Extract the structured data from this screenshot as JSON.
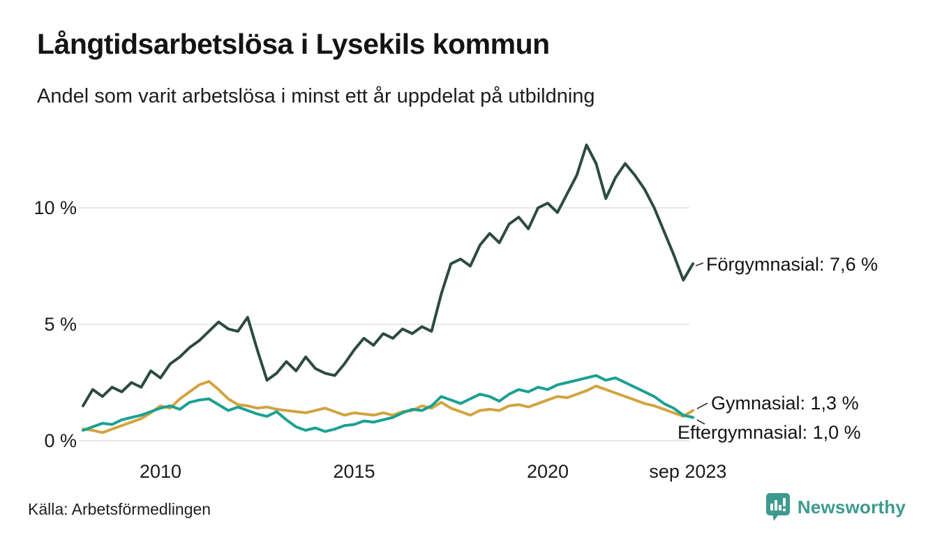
{
  "header": {
    "title": "Långtidsarbetslösa i Lysekils kommun",
    "subtitle": "Andel som varit arbetslösa i minst ett år uppdelat på utbildning"
  },
  "footer": {
    "source": "Källa: Arbetsförmedlingen",
    "brand_name": "Newsworthy",
    "brand_color": "#3d9a8e",
    "brand_icon": "bar-chart-speech-bubble-icon"
  },
  "chart_data": {
    "type": "line",
    "title": "Långtidsarbetslösa i Lysekils kommun",
    "subtitle": "Andel som varit arbetslösa i minst ett år uppdelat på utbildning",
    "unit": "%",
    "grid": true,
    "x_start": 2008,
    "x_step": 0.25,
    "x_axis": {
      "range": [
        2008,
        2023.75
      ],
      "ticks": [
        {
          "label": "2010",
          "x": 2010
        },
        {
          "label": "2015",
          "x": 2015
        },
        {
          "label": "2020",
          "x": 2020
        },
        {
          "label": "sep 2023",
          "x": 2023.62
        }
      ]
    },
    "y_axis": {
      "range": [
        0,
        13.5
      ],
      "ticks": [
        {
          "label": "0 %",
          "value": 0
        },
        {
          "label": "5 %",
          "value": 5
        },
        {
          "label": "10 %",
          "value": 10
        }
      ]
    },
    "series": [
      {
        "name": "Förgymnasial",
        "color": "#2d4a42",
        "end_value": 7.6,
        "end_label": "Förgymnasial: 7,6 %",
        "values": [
          1.5,
          2.2,
          1.9,
          2.3,
          2.1,
          2.5,
          2.3,
          3.0,
          2.7,
          3.3,
          3.6,
          4.0,
          4.3,
          4.7,
          5.1,
          4.8,
          4.7,
          5.3,
          3.9,
          2.6,
          2.9,
          3.4,
          3.0,
          3.6,
          3.1,
          2.9,
          2.8,
          3.3,
          3.9,
          4.4,
          4.1,
          4.6,
          4.4,
          4.8,
          4.6,
          4.9,
          4.7,
          6.3,
          7.6,
          7.8,
          7.5,
          8.4,
          8.9,
          8.5,
          9.3,
          9.6,
          9.1,
          10.0,
          10.2,
          9.8,
          10.6,
          11.4,
          12.7,
          11.9,
          10.4,
          11.3,
          11.9,
          11.4,
          10.8,
          10.0,
          9.0,
          8.0,
          6.9,
          7.6
        ]
      },
      {
        "name": "Gymnasial",
        "color": "#d1a440",
        "end_value": 1.3,
        "end_label": "Gymnasial: 1,3 %",
        "values": [
          0.5,
          0.45,
          0.35,
          0.5,
          0.65,
          0.8,
          0.95,
          1.2,
          1.5,
          1.4,
          1.8,
          2.1,
          2.4,
          2.55,
          2.2,
          1.8,
          1.55,
          1.5,
          1.4,
          1.45,
          1.35,
          1.3,
          1.25,
          1.2,
          1.3,
          1.4,
          1.25,
          1.1,
          1.2,
          1.15,
          1.1,
          1.2,
          1.1,
          1.25,
          1.3,
          1.5,
          1.4,
          1.65,
          1.4,
          1.25,
          1.1,
          1.3,
          1.35,
          1.3,
          1.5,
          1.55,
          1.45,
          1.6,
          1.75,
          1.9,
          1.85,
          2.0,
          2.15,
          2.35,
          2.2,
          2.05,
          1.9,
          1.75,
          1.6,
          1.5,
          1.35,
          1.2,
          1.05,
          1.3
        ]
      },
      {
        "name": "Eftergymnasial",
        "color": "#1aa092",
        "end_value": 1.0,
        "end_label": "Eftergymnasial: 1,0 %",
        "values": [
          0.45,
          0.6,
          0.75,
          0.7,
          0.9,
          1.0,
          1.1,
          1.25,
          1.4,
          1.5,
          1.35,
          1.65,
          1.75,
          1.8,
          1.55,
          1.3,
          1.45,
          1.3,
          1.15,
          1.05,
          1.25,
          0.9,
          0.6,
          0.45,
          0.55,
          0.4,
          0.5,
          0.65,
          0.7,
          0.85,
          0.8,
          0.9,
          1.0,
          1.2,
          1.35,
          1.3,
          1.5,
          1.9,
          1.75,
          1.6,
          1.8,
          2.0,
          1.9,
          1.7,
          2.0,
          2.2,
          2.1,
          2.3,
          2.2,
          2.4,
          2.5,
          2.6,
          2.7,
          2.8,
          2.6,
          2.7,
          2.5,
          2.3,
          2.1,
          1.9,
          1.6,
          1.4,
          1.1,
          1.0
        ]
      }
    ],
    "grid_color": "#e7e7e7"
  }
}
